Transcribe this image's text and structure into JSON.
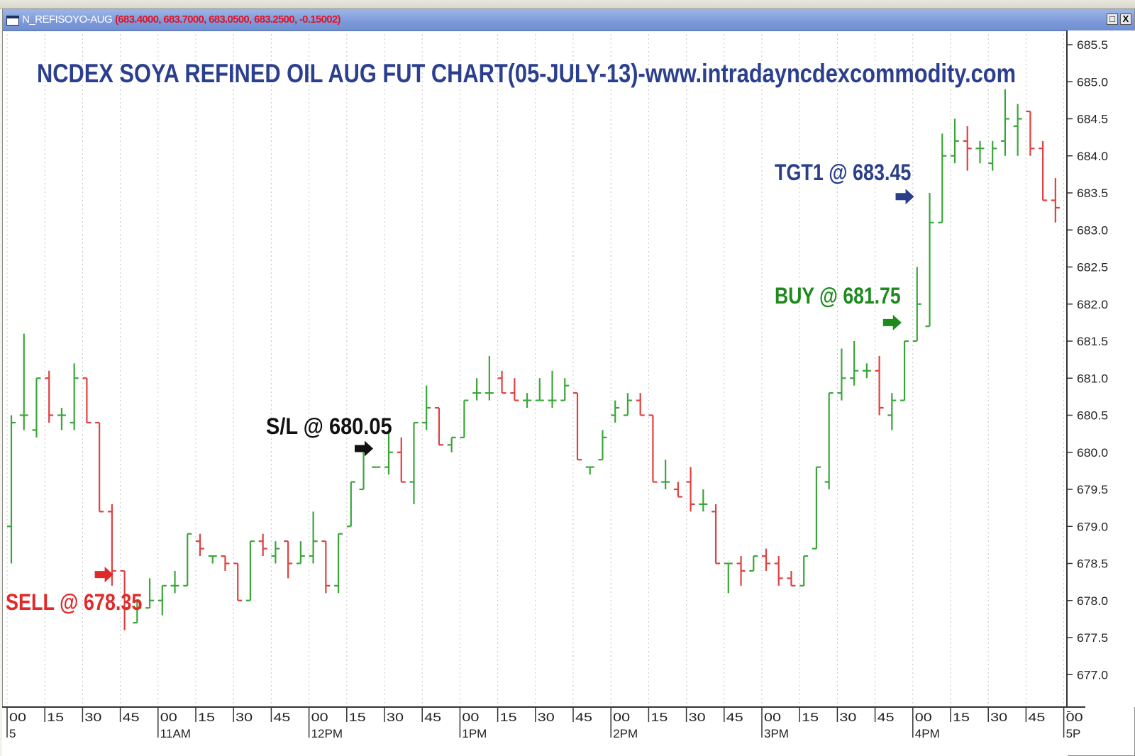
{
  "window": {
    "symbol": "N_REFISOYO-AUG",
    "quote": "(683.4000, 683.7000, 683.0500, 683.2500, -0.15002)",
    "restore_label": "□",
    "close_label": "X"
  },
  "chart_data": {
    "type": "ohlc",
    "title": "NCDEX SOYA REFINED OIL AUG FUT CHART(05-JULY-13)-www.intradayncdexcommodity.com",
    "xlabel": "",
    "ylabel": "",
    "ylim": [
      676.8,
      685.6
    ],
    "y_ticks": [
      "685.5",
      "685.0",
      "684.5",
      "684.0",
      "683.5",
      "683.0",
      "682.5",
      "682.0",
      "681.5",
      "681.0",
      "680.5",
      "680.0",
      "679.5",
      "679.0",
      "678.5",
      "678.0",
      "677.5",
      "677.0"
    ],
    "x_tick_labels": [
      "00",
      "15",
      "30",
      "45",
      "00",
      "15",
      "30",
      "45",
      "00",
      "15",
      "30",
      "45",
      "00",
      "15",
      "30",
      "45",
      "00",
      "15",
      "30",
      "45",
      "00",
      "15",
      "30",
      "45",
      "00",
      "15",
      "30",
      "45",
      "00"
    ],
    "session_labels": [
      {
        "label": "5",
        "tick": 0
      },
      {
        "label": "11AM",
        "tick": 4
      },
      {
        "label": "12PM",
        "tick": 8
      },
      {
        "label": "1PM",
        "tick": 12
      },
      {
        "label": "2PM",
        "tick": 16
      },
      {
        "label": "3PM",
        "tick": 20
      },
      {
        "label": "4PM",
        "tick": 24
      },
      {
        "label": "5P",
        "tick": 28
      }
    ],
    "up_color": "#3aa63a",
    "down_color": "#e04040",
    "bars": [
      {
        "x": "10:00",
        "o": 679.0,
        "h": 680.5,
        "l": 678.5,
        "c": 680.4
      },
      {
        "x": "10:05",
        "o": 680.5,
        "h": 681.6,
        "l": 680.3,
        "c": 680.5
      },
      {
        "x": "10:10",
        "o": 680.3,
        "h": 681.0,
        "l": 680.2,
        "c": 681.0
      },
      {
        "x": "10:15",
        "o": 681.0,
        "h": 681.1,
        "l": 680.4,
        "c": 680.5
      },
      {
        "x": "10:20",
        "o": 680.5,
        "h": 680.6,
        "l": 680.3,
        "c": 680.5
      },
      {
        "x": "10:25",
        "o": 680.4,
        "h": 681.2,
        "l": 680.3,
        "c": 681.0
      },
      {
        "x": "10:30",
        "o": 681.0,
        "h": 681.0,
        "l": 680.4,
        "c": 680.4
      },
      {
        "x": "10:35",
        "o": 680.4,
        "h": 680.4,
        "l": 679.2,
        "c": 679.2
      },
      {
        "x": "10:40",
        "o": 679.2,
        "h": 679.3,
        "l": 678.2,
        "c": 678.4
      },
      {
        "x": "10:45",
        "o": 678.4,
        "h": 678.4,
        "l": 677.6,
        "c": 677.9
      },
      {
        "x": "10:50",
        "o": 677.7,
        "h": 678.0,
        "l": 677.7,
        "c": 677.9
      },
      {
        "x": "10:55",
        "o": 677.9,
        "h": 678.3,
        "l": 677.9,
        "c": 678.0
      },
      {
        "x": "11:00",
        "o": 678.0,
        "h": 678.2,
        "l": 677.8,
        "c": 678.2
      },
      {
        "x": "11:05",
        "o": 678.2,
        "h": 678.4,
        "l": 678.1,
        "c": 678.2
      },
      {
        "x": "11:10",
        "o": 678.2,
        "h": 678.9,
        "l": 678.2,
        "c": 678.9
      },
      {
        "x": "11:15",
        "o": 678.8,
        "h": 678.9,
        "l": 678.6,
        "c": 678.7
      },
      {
        "x": "11:20",
        "o": 678.6,
        "h": 678.6,
        "l": 678.5,
        "c": 678.6
      },
      {
        "x": "11:25",
        "o": 678.6,
        "h": 678.6,
        "l": 678.4,
        "c": 678.5
      },
      {
        "x": "11:30",
        "o": 678.5,
        "h": 678.5,
        "l": 678.0,
        "c": 678.0
      },
      {
        "x": "11:35",
        "o": 678.0,
        "h": 678.8,
        "l": 678.0,
        "c": 678.8
      },
      {
        "x": "11:40",
        "o": 678.8,
        "h": 678.9,
        "l": 678.6,
        "c": 678.7
      },
      {
        "x": "11:45",
        "o": 678.6,
        "h": 678.8,
        "l": 678.5,
        "c": 678.7
      },
      {
        "x": "11:50",
        "o": 678.8,
        "h": 678.8,
        "l": 678.3,
        "c": 678.5
      },
      {
        "x": "11:55",
        "o": 678.5,
        "h": 678.8,
        "l": 678.5,
        "c": 678.6
      },
      {
        "x": "12:00",
        "o": 678.6,
        "h": 679.2,
        "l": 678.5,
        "c": 678.8
      },
      {
        "x": "12:05",
        "o": 678.8,
        "h": 678.8,
        "l": 678.1,
        "c": 678.2
      },
      {
        "x": "12:10",
        "o": 678.2,
        "h": 678.9,
        "l": 678.1,
        "c": 678.9
      },
      {
        "x": "12:15",
        "o": 679.0,
        "h": 679.6,
        "l": 679.0,
        "c": 679.6
      },
      {
        "x": "12:20",
        "o": 679.5,
        "h": 680.0,
        "l": 679.5,
        "c": 680.0
      },
      {
        "x": "12:25",
        "o": 679.8,
        "h": 679.8,
        "l": 679.8,
        "c": 679.8
      },
      {
        "x": "12:30",
        "o": 679.8,
        "h": 680.3,
        "l": 679.7,
        "c": 680.0
      },
      {
        "x": "12:35",
        "o": 680.0,
        "h": 680.2,
        "l": 679.6,
        "c": 679.6
      },
      {
        "x": "12:40",
        "o": 679.6,
        "h": 680.4,
        "l": 679.3,
        "c": 680.4
      },
      {
        "x": "12:45",
        "o": 680.4,
        "h": 680.9,
        "l": 680.3,
        "c": 680.6
      },
      {
        "x": "12:50",
        "o": 680.6,
        "h": 680.6,
        "l": 680.1,
        "c": 680.1
      },
      {
        "x": "12:55",
        "o": 680.1,
        "h": 680.2,
        "l": 680.0,
        "c": 680.2
      },
      {
        "x": "13:00",
        "o": 680.2,
        "h": 680.7,
        "l": 680.2,
        "c": 680.7
      },
      {
        "x": "13:05",
        "o": 680.8,
        "h": 681.0,
        "l": 680.7,
        "c": 680.8
      },
      {
        "x": "13:10",
        "o": 680.8,
        "h": 681.3,
        "l": 680.7,
        "c": 680.8
      },
      {
        "x": "13:15",
        "o": 681.0,
        "h": 681.1,
        "l": 680.8,
        "c": 680.8
      },
      {
        "x": "13:20",
        "o": 680.8,
        "h": 681.0,
        "l": 680.7,
        "c": 680.7
      },
      {
        "x": "13:25",
        "o": 680.7,
        "h": 680.8,
        "l": 680.6,
        "c": 680.7
      },
      {
        "x": "13:30",
        "o": 680.7,
        "h": 681.0,
        "l": 680.7,
        "c": 680.7
      },
      {
        "x": "13:35",
        "o": 680.7,
        "h": 681.1,
        "l": 680.6,
        "c": 680.7
      },
      {
        "x": "13:40",
        "o": 680.7,
        "h": 681.0,
        "l": 680.7,
        "c": 680.9
      },
      {
        "x": "13:45",
        "o": 680.8,
        "h": 680.8,
        "l": 679.9,
        "c": 679.9
      },
      {
        "x": "13:50",
        "o": 679.8,
        "h": 679.8,
        "l": 679.7,
        "c": 679.8
      },
      {
        "x": "13:55",
        "o": 679.9,
        "h": 680.3,
        "l": 679.9,
        "c": 680.2
      },
      {
        "x": "14:00",
        "o": 680.5,
        "h": 680.7,
        "l": 680.4,
        "c": 680.6
      },
      {
        "x": "14:05",
        "o": 680.5,
        "h": 680.8,
        "l": 680.5,
        "c": 680.7
      },
      {
        "x": "14:10",
        "o": 680.7,
        "h": 680.8,
        "l": 680.5,
        "c": 680.5
      },
      {
        "x": "14:15",
        "o": 680.5,
        "h": 680.5,
        "l": 679.6,
        "c": 679.6
      },
      {
        "x": "14:20",
        "o": 679.6,
        "h": 679.9,
        "l": 679.5,
        "c": 679.6
      },
      {
        "x": "14:25",
        "o": 679.5,
        "h": 679.6,
        "l": 679.4,
        "c": 679.4
      },
      {
        "x": "14:30",
        "o": 679.6,
        "h": 679.8,
        "l": 679.2,
        "c": 679.3
      },
      {
        "x": "14:35",
        "o": 679.3,
        "h": 679.5,
        "l": 679.2,
        "c": 679.3
      },
      {
        "x": "14:40",
        "o": 679.2,
        "h": 679.3,
        "l": 678.5,
        "c": 678.5
      },
      {
        "x": "14:45",
        "o": 678.5,
        "h": 678.5,
        "l": 678.1,
        "c": 678.5
      },
      {
        "x": "14:50",
        "o": 678.5,
        "h": 678.6,
        "l": 678.2,
        "c": 678.4
      },
      {
        "x": "14:55",
        "o": 678.4,
        "h": 678.6,
        "l": 678.4,
        "c": 678.6
      },
      {
        "x": "15:00",
        "o": 678.6,
        "h": 678.7,
        "l": 678.4,
        "c": 678.5
      },
      {
        "x": "15:05",
        "o": 678.5,
        "h": 678.6,
        "l": 678.2,
        "c": 678.3
      },
      {
        "x": "15:10",
        "o": 678.3,
        "h": 678.4,
        "l": 678.2,
        "c": 678.2
      },
      {
        "x": "15:15",
        "o": 678.2,
        "h": 678.6,
        "l": 678.2,
        "c": 678.6
      },
      {
        "x": "15:20",
        "o": 678.7,
        "h": 679.8,
        "l": 678.7,
        "c": 679.8
      },
      {
        "x": "15:25",
        "o": 679.6,
        "h": 680.8,
        "l": 679.5,
        "c": 680.8
      },
      {
        "x": "15:30",
        "o": 680.8,
        "h": 681.4,
        "l": 680.7,
        "c": 681.0
      },
      {
        "x": "15:35",
        "o": 681.0,
        "h": 681.5,
        "l": 680.9,
        "c": 681.1
      },
      {
        "x": "15:40",
        "o": 681.1,
        "h": 681.2,
        "l": 681.0,
        "c": 681.1
      },
      {
        "x": "15:45",
        "o": 681.1,
        "h": 681.3,
        "l": 680.5,
        "c": 680.6
      },
      {
        "x": "15:50",
        "o": 680.5,
        "h": 680.8,
        "l": 680.3,
        "c": 680.7
      },
      {
        "x": "15:55",
        "o": 680.7,
        "h": 681.5,
        "l": 680.7,
        "c": 681.5
      },
      {
        "x": "16:00",
        "o": 681.5,
        "h": 682.5,
        "l": 681.5,
        "c": 682.0
      },
      {
        "x": "16:05",
        "o": 681.7,
        "h": 683.5,
        "l": 681.7,
        "c": 683.1
      },
      {
        "x": "16:10",
        "o": 683.1,
        "h": 684.3,
        "l": 683.1,
        "c": 684.0
      },
      {
        "x": "16:15",
        "o": 684.0,
        "h": 684.5,
        "l": 683.9,
        "c": 684.2
      },
      {
        "x": "16:20",
        "o": 684.2,
        "h": 684.4,
        "l": 683.8,
        "c": 684.1
      },
      {
        "x": "16:25",
        "o": 684.1,
        "h": 684.2,
        "l": 683.9,
        "c": 684.1
      },
      {
        "x": "16:30",
        "o": 683.9,
        "h": 684.2,
        "l": 683.8,
        "c": 684.1
      },
      {
        "x": "16:35",
        "o": 684.2,
        "h": 684.9,
        "l": 684.0,
        "c": 684.5
      },
      {
        "x": "16:40",
        "o": 684.4,
        "h": 684.7,
        "l": 684.0,
        "c": 684.5
      },
      {
        "x": "16:45",
        "o": 684.6,
        "h": 684.6,
        "l": 684.0,
        "c": 684.1
      },
      {
        "x": "16:50",
        "o": 684.1,
        "h": 684.2,
        "l": 683.4,
        "c": 683.4
      },
      {
        "x": "16:55",
        "o": 683.4,
        "h": 683.7,
        "l": 683.1,
        "c": 683.3
      }
    ],
    "annotations": [
      {
        "text": "SELL @ 678.35",
        "color": "#e02a2a",
        "arrow_at": "10:45",
        "level": 678.35
      },
      {
        "text": "S/L @ 680.05",
        "color": "#111111",
        "arrow_at": "12:30",
        "level": 680.05
      },
      {
        "text": "BUY @ 681.75",
        "color": "#1e8a1e",
        "arrow_at": "16:00",
        "level": 681.75
      },
      {
        "text": "TGT1 @ 683.45",
        "color": "#2a3f8a",
        "arrow_at": "16:05",
        "level": 683.45
      }
    ],
    "grid": true,
    "legend": "none"
  }
}
